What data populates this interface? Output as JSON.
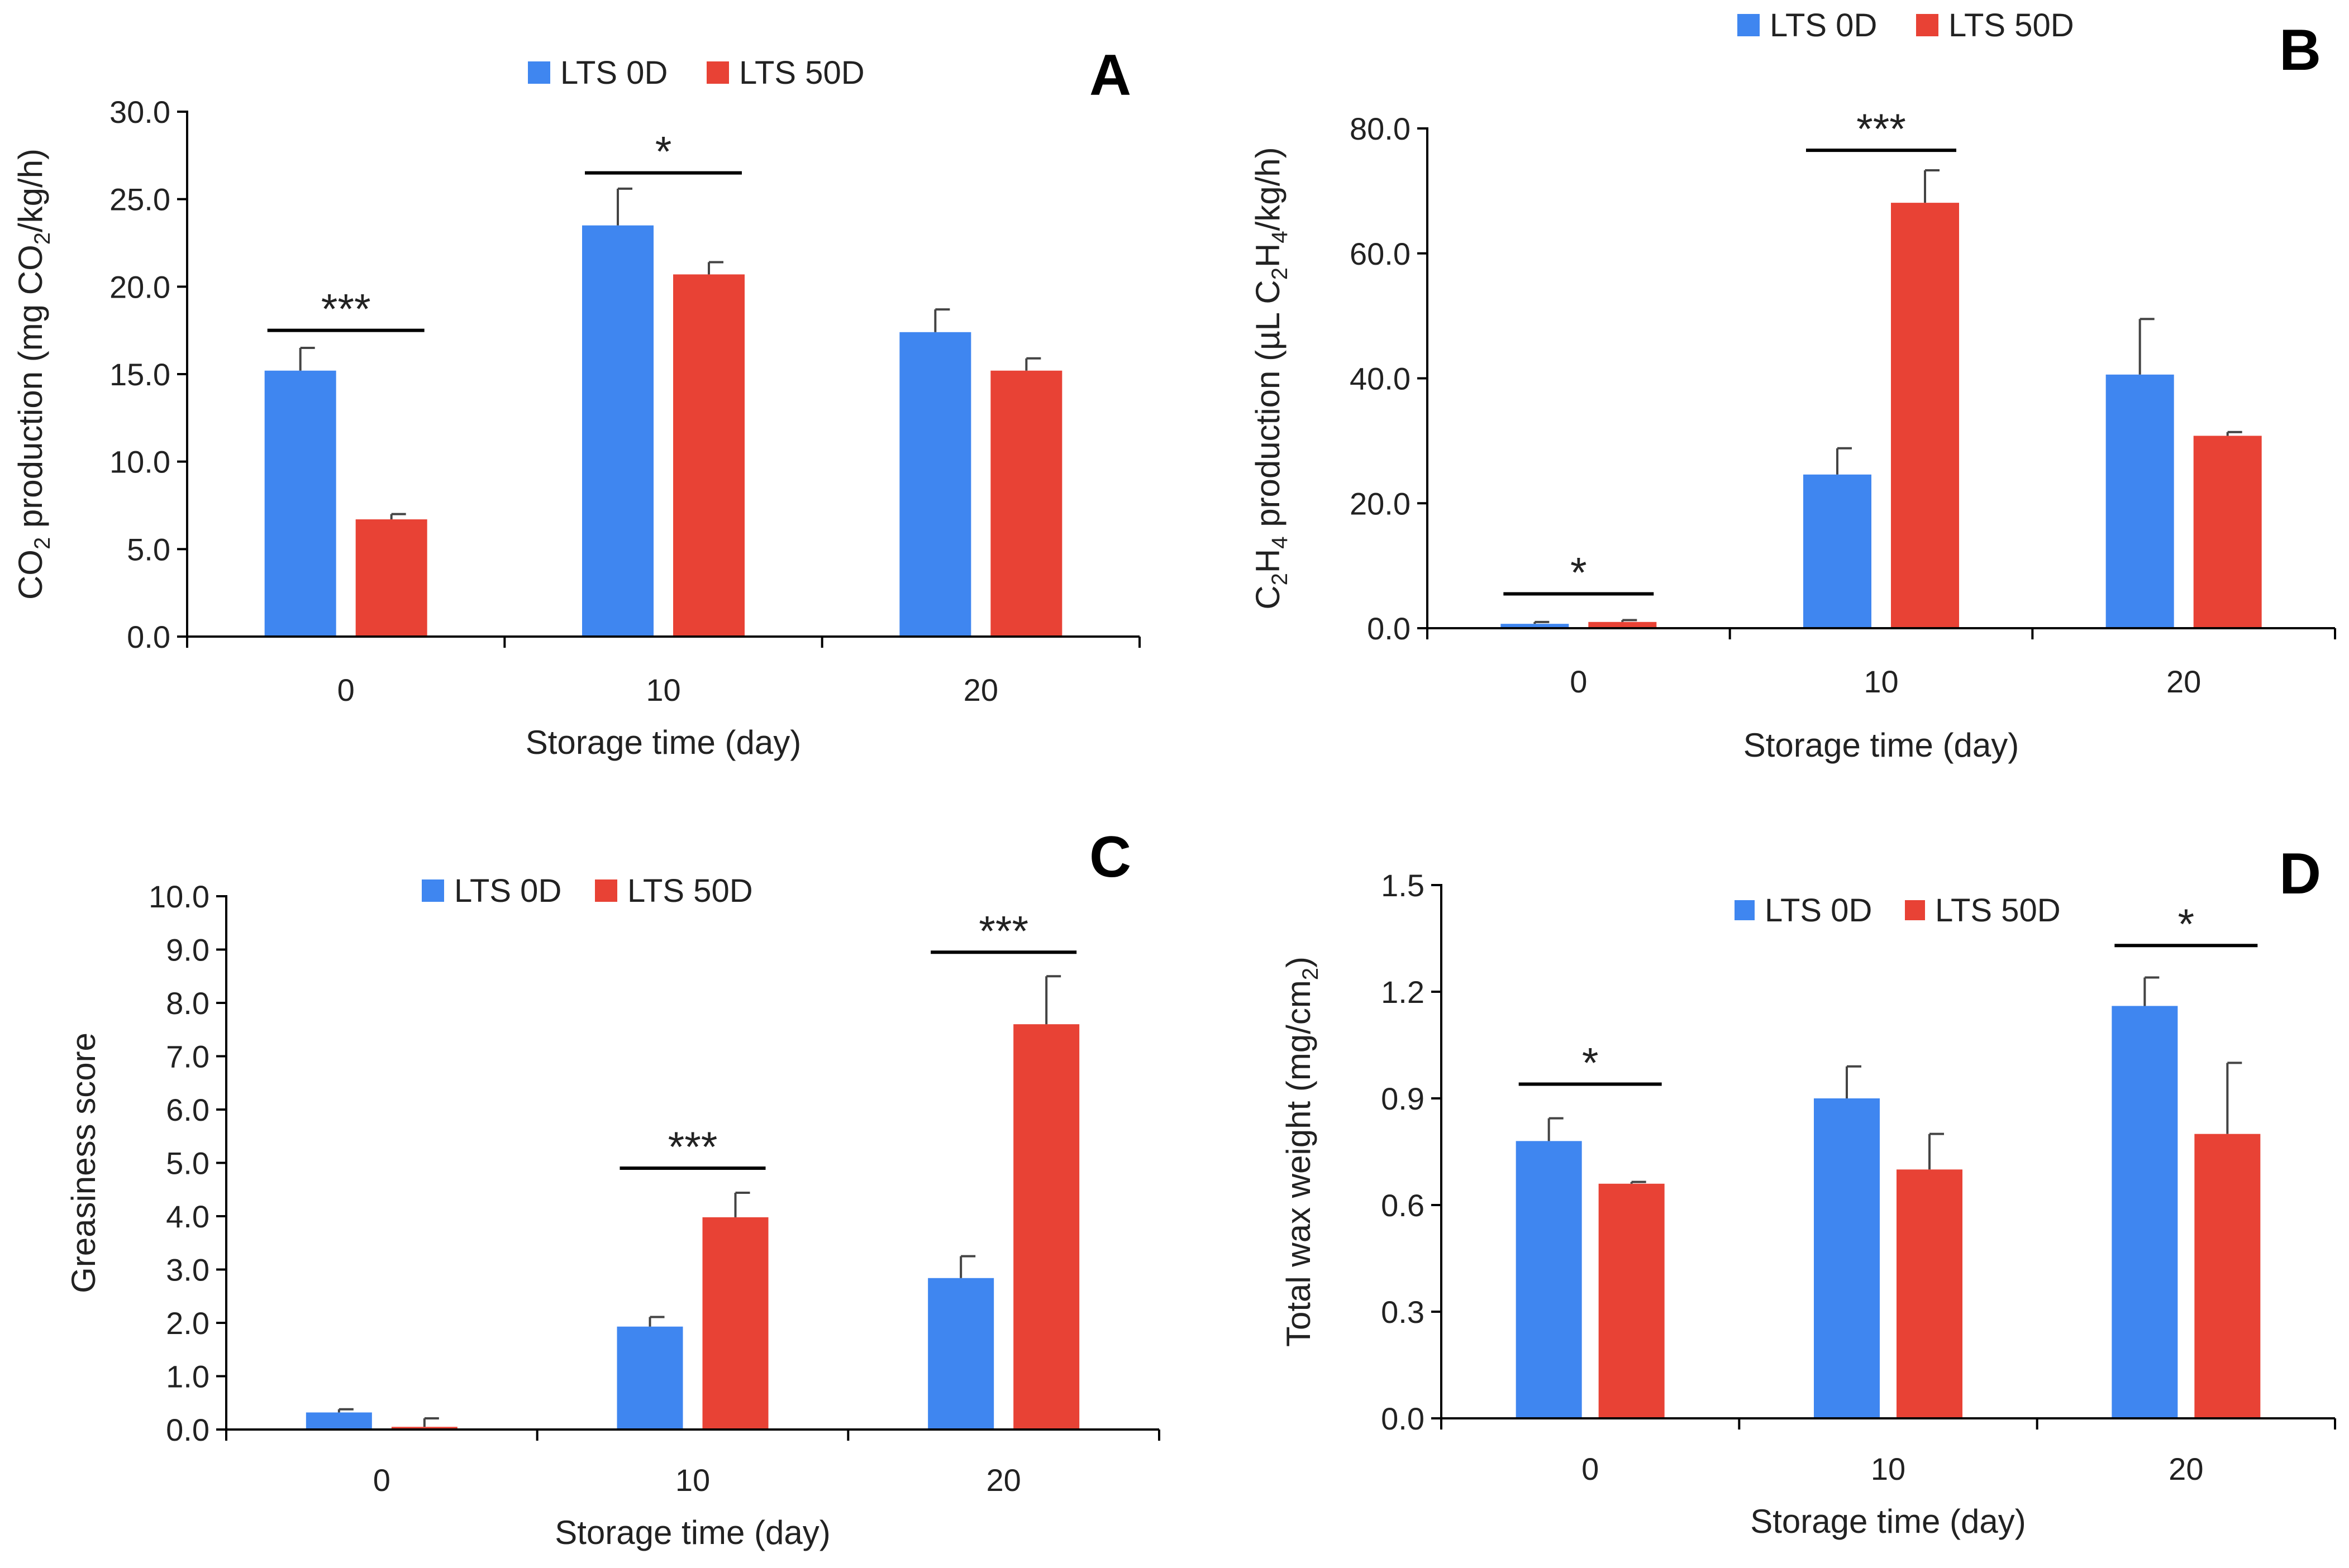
{
  "colors": {
    "series_0": "#3f86f0",
    "series_1": "#e84235"
  },
  "chart_data": [
    {
      "id": "A",
      "type": "bar",
      "panel_label": "A",
      "categories": [
        "0",
        "10",
        "20"
      ],
      "xlabel": "Storage time (day)",
      "ylabel_parts": [
        "CO",
        "2",
        " production (mg CO",
        "2",
        "/kg/h)"
      ],
      "ylim": [
        0,
        30
      ],
      "yticks": [
        "0.0",
        "5.0",
        "10.0",
        "15.0",
        "20.0",
        "25.0",
        "30.0"
      ],
      "legend": [
        "LTS 0D",
        "LTS 50D"
      ],
      "series": [
        {
          "name": "LTS 0D",
          "values": [
            15.2,
            23.5,
            17.4
          ],
          "errors": [
            1.3,
            2.1,
            1.3
          ]
        },
        {
          "name": "LTS 50D",
          "values": [
            6.7,
            20.7,
            15.2
          ],
          "errors": [
            0.3,
            0.7,
            0.7
          ]
        }
      ],
      "significance": [
        {
          "category": 0,
          "label": "***",
          "y": 17.5
        },
        {
          "category": 1,
          "label": "*",
          "y": 26.5
        }
      ]
    },
    {
      "id": "B",
      "type": "bar",
      "panel_label": "B",
      "categories": [
        "0",
        "10",
        "20"
      ],
      "xlabel": "Storage time (day)",
      "ylabel_parts": [
        "C",
        "2",
        "H",
        "4",
        " production (µL C",
        "2",
        "H",
        "4",
        "/kg/h)"
      ],
      "ylim": [
        0,
        80
      ],
      "yticks": [
        "0.0",
        "20.0",
        "40.0",
        "60.0",
        "80.0"
      ],
      "legend": [
        "LTS 0D",
        "LTS 50D"
      ],
      "series": [
        {
          "name": "LTS 0D",
          "values": [
            0.7,
            24.6,
            40.6
          ],
          "errors": [
            0.3,
            4.2,
            8.9
          ]
        },
        {
          "name": "LTS 50D",
          "values": [
            1.0,
            68.1,
            30.8
          ],
          "errors": [
            0.3,
            5.2,
            0.6
          ]
        }
      ],
      "significance": [
        {
          "category": 0,
          "label": "*",
          "y": 5.5
        },
        {
          "category": 1,
          "label": "***",
          "y": 76.5
        }
      ]
    },
    {
      "id": "C",
      "type": "bar",
      "panel_label": "C",
      "categories": [
        "0",
        "10",
        "20"
      ],
      "xlabel": "Storage time (day)",
      "ylabel_parts": [
        "Greasiness score"
      ],
      "ylim": [
        0,
        10
      ],
      "yticks": [
        "0.0",
        "1.0",
        "2.0",
        "3.0",
        "4.0",
        "5.0",
        "6.0",
        "7.0",
        "8.0",
        "9.0",
        "10.0"
      ],
      "legend": [
        "LTS 0D",
        "LTS 50D"
      ],
      "series": [
        {
          "name": "LTS 0D",
          "values": [
            0.32,
            1.93,
            2.84
          ],
          "errors": [
            0.06,
            0.18,
            0.41
          ]
        },
        {
          "name": "LTS 50D",
          "values": [
            0.05,
            3.98,
            7.6
          ],
          "errors": [
            0.16,
            0.46,
            0.9
          ]
        }
      ],
      "significance": [
        {
          "category": 1,
          "label": "***",
          "y": 4.9
        },
        {
          "category": 2,
          "label": "***",
          "y": 8.95
        }
      ]
    },
    {
      "id": "D",
      "type": "bar",
      "panel_label": "D",
      "categories": [
        "0",
        "10",
        "20"
      ],
      "xlabel": "Storage time (day)",
      "ylabel_parts": [
        "Total wax weight (mg/cm",
        "2",
        ")"
      ],
      "ylim": [
        0,
        1.5
      ],
      "yticks": [
        "0.0",
        "0.3",
        "0.6",
        "0.9",
        "1.2",
        "1.5"
      ],
      "legend": [
        "LTS 0D",
        "LTS 50D"
      ],
      "series": [
        {
          "name": "LTS 0D",
          "values": [
            0.78,
            0.9,
            1.16
          ],
          "errors": [
            0.064,
            0.09,
            0.08
          ]
        },
        {
          "name": "LTS 50D",
          "values": [
            0.66,
            0.7,
            0.8
          ],
          "errors": [
            0.005,
            0.1,
            0.2
          ]
        }
      ],
      "significance": [
        {
          "category": 0,
          "label": "*",
          "y": 0.94
        },
        {
          "category": 2,
          "label": "*",
          "y": 1.33
        }
      ]
    }
  ]
}
